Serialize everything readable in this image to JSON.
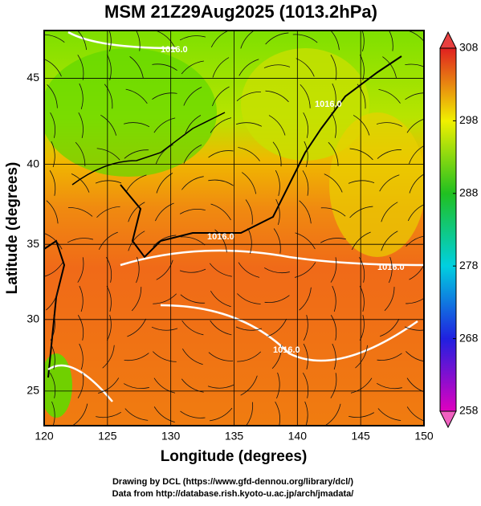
{
  "title": "MSM 21Z29Aug2025 (1013.2hPa)",
  "x_label": "Longitude (degrees)",
  "y_label": "Latitude  (degrees)",
  "xlim": [
    120,
    150
  ],
  "ylim": [
    22.5,
    47.6
  ],
  "xticks": [
    120,
    125,
    130,
    135,
    140,
    145,
    150
  ],
  "yticks": [
    25,
    30,
    35,
    40,
    45
  ],
  "colorbar": {
    "lim": [
      258,
      308
    ],
    "ticks": [
      258,
      268,
      278,
      288,
      298,
      308
    ]
  },
  "contour_labels": [
    "1016.0",
    "1016.0",
    "1016.0",
    "1016.0",
    "1016.0"
  ],
  "footer": [
    "Drawing by DCL (https://www.gfd-dennou.org/library/dcl/)",
    "Data from http://database.rish.kyoto-u.ac.jp/arch/jmadata/"
  ]
}
